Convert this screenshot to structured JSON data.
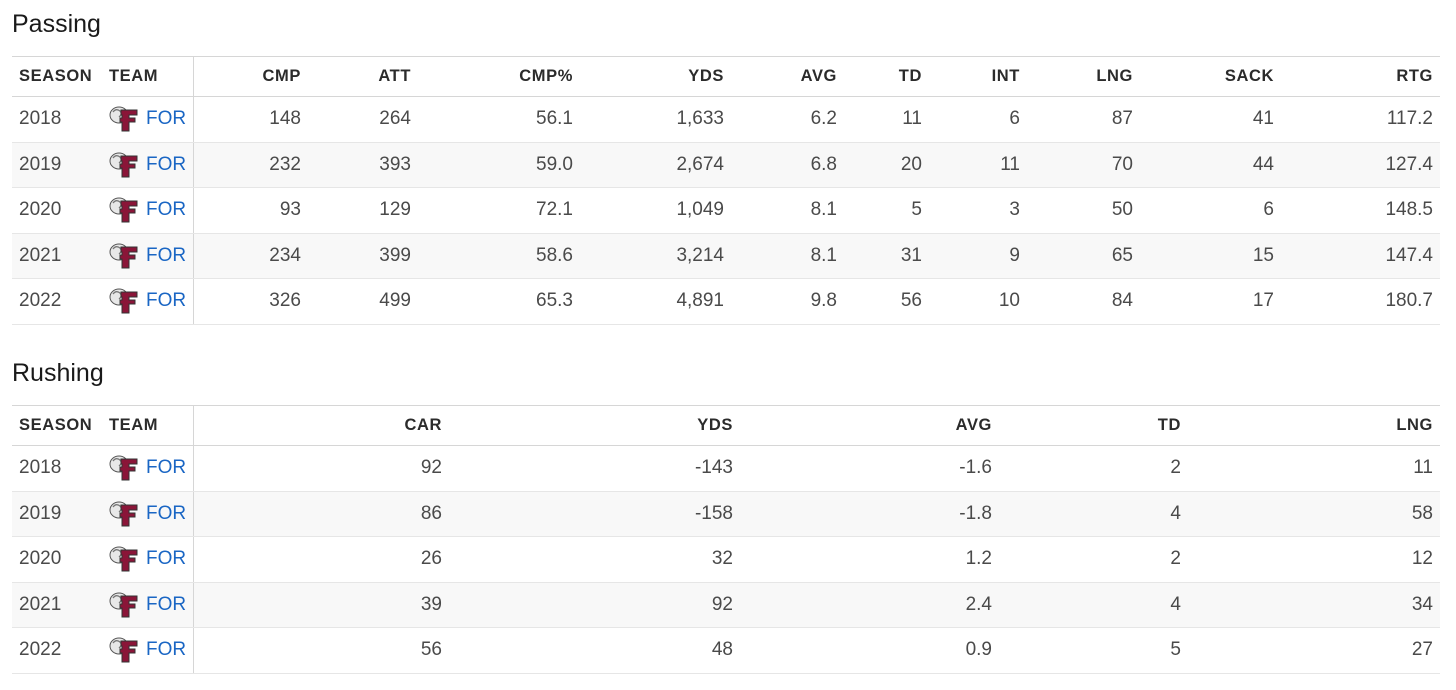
{
  "passing": {
    "title": "Passing",
    "columns": [
      "SEASON",
      "TEAM",
      "CMP",
      "ATT",
      "CMP%",
      "YDS",
      "AVG",
      "TD",
      "INT",
      "LNG",
      "SACK",
      "RTG"
    ],
    "rows": [
      {
        "season": "2018",
        "team": "FOR",
        "cmp": "148",
        "att": "264",
        "cmp_pct": "56.1",
        "yds": "1,633",
        "avg": "6.2",
        "td": "11",
        "int": "6",
        "lng": "87",
        "sack": "41",
        "rtg": "117.2"
      },
      {
        "season": "2019",
        "team": "FOR",
        "cmp": "232",
        "att": "393",
        "cmp_pct": "59.0",
        "yds": "2,674",
        "avg": "6.8",
        "td": "20",
        "int": "11",
        "lng": "70",
        "sack": "44",
        "rtg": "127.4"
      },
      {
        "season": "2020",
        "team": "FOR",
        "cmp": "93",
        "att": "129",
        "cmp_pct": "72.1",
        "yds": "1,049",
        "avg": "8.1",
        "td": "5",
        "int": "3",
        "lng": "50",
        "sack": "6",
        "rtg": "148.5"
      },
      {
        "season": "2021",
        "team": "FOR",
        "cmp": "234",
        "att": "399",
        "cmp_pct": "58.6",
        "yds": "3,214",
        "avg": "8.1",
        "td": "31",
        "int": "9",
        "lng": "65",
        "sack": "15",
        "rtg": "147.4"
      },
      {
        "season": "2022",
        "team": "FOR",
        "cmp": "326",
        "att": "499",
        "cmp_pct": "65.3",
        "yds": "4,891",
        "avg": "9.8",
        "td": "56",
        "int": "10",
        "lng": "84",
        "sack": "17",
        "rtg": "180.7"
      }
    ]
  },
  "rushing": {
    "title": "Rushing",
    "columns": [
      "SEASON",
      "TEAM",
      "CAR",
      "YDS",
      "AVG",
      "TD",
      "LNG"
    ],
    "rows": [
      {
        "season": "2018",
        "team": "FOR",
        "car": "92",
        "yds": "-143",
        "avg": "-1.6",
        "td": "2",
        "lng": "11"
      },
      {
        "season": "2019",
        "team": "FOR",
        "car": "86",
        "yds": "-158",
        "avg": "-1.8",
        "td": "4",
        "lng": "58"
      },
      {
        "season": "2020",
        "team": "FOR",
        "car": "26",
        "yds": "32",
        "avg": "1.2",
        "td": "2",
        "lng": "12"
      },
      {
        "season": "2021",
        "team": "FOR",
        "car": "39",
        "yds": "92",
        "avg": "2.4",
        "td": "4",
        "lng": "34"
      },
      {
        "season": "2022",
        "team": "FOR",
        "car": "56",
        "yds": "48",
        "avg": "0.9",
        "td": "5",
        "lng": "27"
      }
    ]
  },
  "team_logo": {
    "icon": "fordham-ram-logo-icon",
    "primary_color": "#8a1538",
    "secondary_color": "#e8e8e8"
  },
  "colors": {
    "link": "#1a66c4",
    "stripe": "#f8f8f8",
    "border": "#d6d6d6"
  }
}
